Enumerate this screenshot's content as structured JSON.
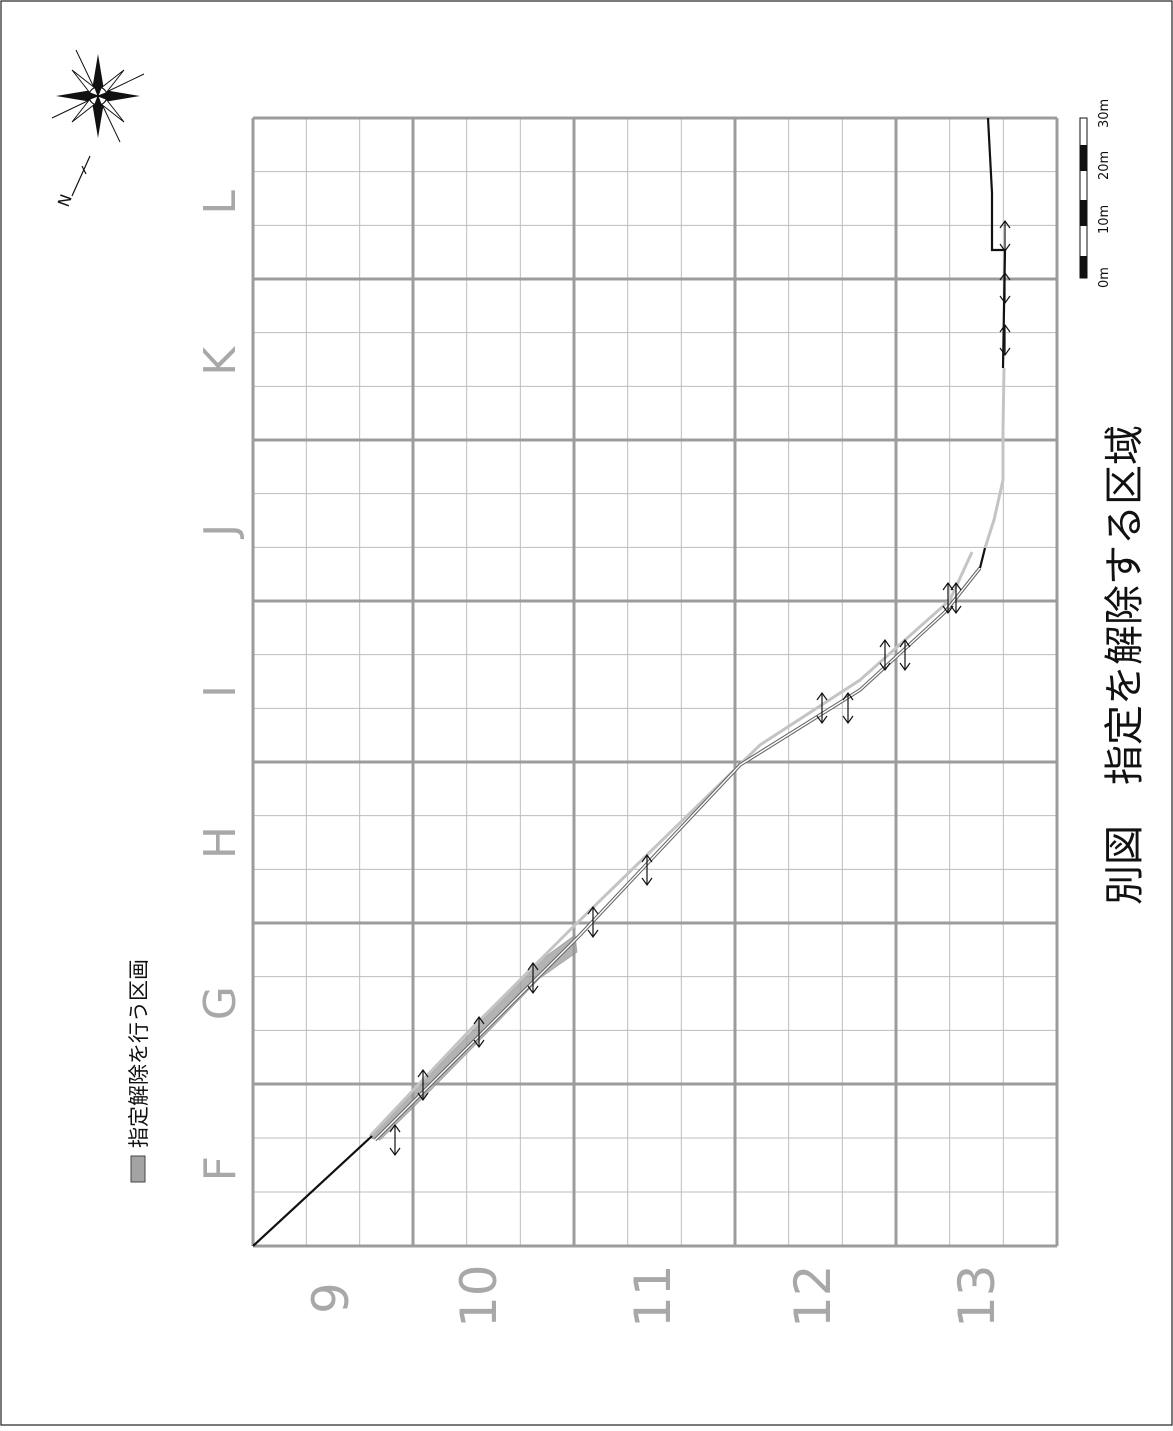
{
  "figure": {
    "title": "別図　指定を解除する区域",
    "legend_label": "指定解除を行う区画",
    "north_label": "N",
    "column_labels": [
      "F",
      "G",
      "H",
      "I",
      "J",
      "K",
      "L"
    ],
    "row_labels": [
      "9",
      "10",
      "11",
      "12",
      "13"
    ],
    "scale_labels": [
      "0m",
      "10m",
      "20m",
      "30m"
    ]
  },
  "colors": {
    "major_grid": "#9c9c9c",
    "minor_grid": "#bdbdbd",
    "boundary_line": "#111111",
    "alt_line": "#c4c4c4",
    "hatched_area": "#9a9a9a",
    "axis_text": "#a8a8a8"
  }
}
